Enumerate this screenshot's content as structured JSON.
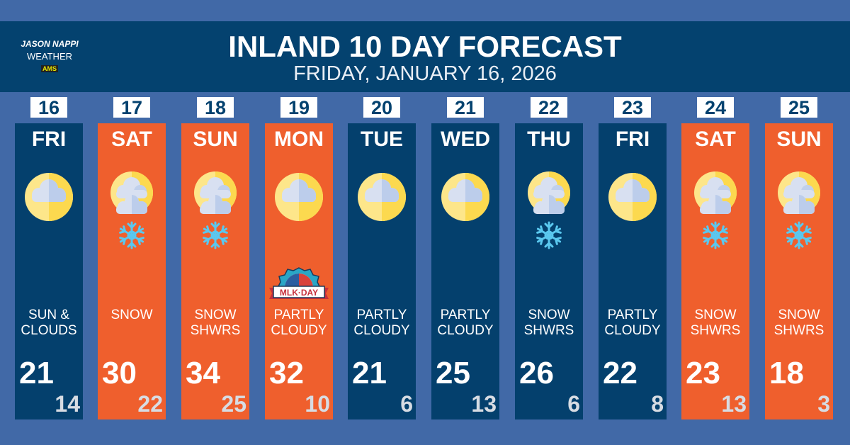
{
  "header": {
    "logo_line1": "JASON NAPPI",
    "logo_line2": "WEATHER",
    "logo_badge": "AMS",
    "title": "INLAND 10 DAY FORECAST",
    "subtitle": "FRIDAY, JANUARY 16, 2026"
  },
  "colors": {
    "navy": "#04406d",
    "orange": "#ef5f2d",
    "background": "#4169a7"
  },
  "days": [
    {
      "date": "16",
      "dow": "FRI",
      "cond1": "SUN &",
      "cond2": "CLOUDS",
      "hi": "21",
      "lo": "14",
      "color": "navy",
      "icon": "sun-cloud-icon"
    },
    {
      "date": "17",
      "dow": "SAT",
      "cond1": "SNOW",
      "cond2": "",
      "hi": "30",
      "lo": "22",
      "color": "orange",
      "icon": "snow-icon"
    },
    {
      "date": "18",
      "dow": "SUN",
      "cond1": "SNOW",
      "cond2": "SHWRS",
      "hi": "34",
      "lo": "25",
      "color": "orange",
      "icon": "snow-icon"
    },
    {
      "date": "19",
      "dow": "MON",
      "cond1": "PARTLY",
      "cond2": "CLOUDY",
      "hi": "32",
      "lo": "10",
      "color": "orange",
      "icon": "sun-cloud-icon",
      "badge": "MLK DAY"
    },
    {
      "date": "20",
      "dow": "TUE",
      "cond1": "PARTLY",
      "cond2": "CLOUDY",
      "hi": "21",
      "lo": "6",
      "color": "navy",
      "icon": "sun-cloud-icon"
    },
    {
      "date": "21",
      "dow": "WED",
      "cond1": "PARTLY",
      "cond2": "CLOUDY",
      "hi": "25",
      "lo": "13",
      "color": "navy",
      "icon": "sun-cloud-icon"
    },
    {
      "date": "22",
      "dow": "THU",
      "cond1": "SNOW",
      "cond2": "SHWRS",
      "hi": "26",
      "lo": "6",
      "color": "navy",
      "icon": "snow-icon"
    },
    {
      "date": "23",
      "dow": "FRI",
      "cond1": "PARTLY",
      "cond2": "CLOUDY",
      "hi": "22",
      "lo": "8",
      "color": "navy",
      "icon": "sun-cloud-icon"
    },
    {
      "date": "24",
      "dow": "SAT",
      "cond1": "SNOW",
      "cond2": "SHWRS",
      "hi": "23",
      "lo": "13",
      "color": "orange",
      "icon": "snow-icon"
    },
    {
      "date": "25",
      "dow": "SUN",
      "cond1": "SNOW",
      "cond2": "SHWRS",
      "hi": "18",
      "lo": "3",
      "color": "orange",
      "icon": "snow-icon"
    }
  ]
}
